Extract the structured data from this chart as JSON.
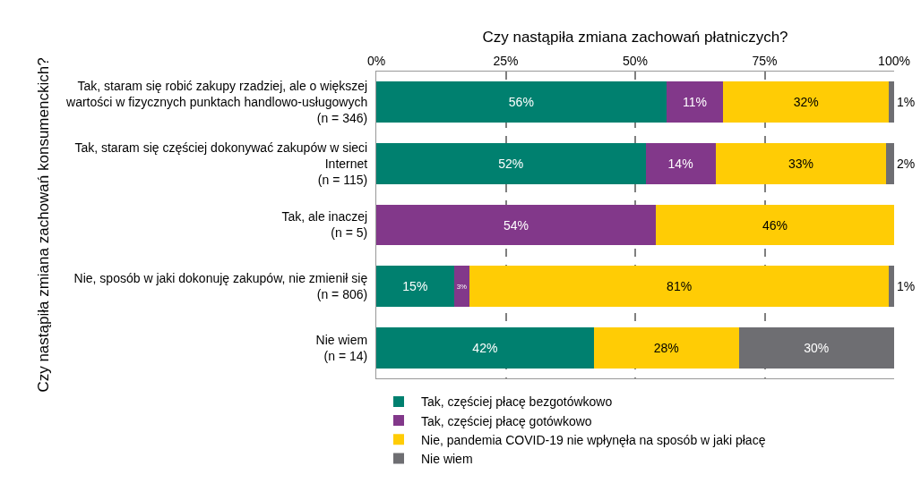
{
  "chart_data": {
    "type": "bar",
    "orientation": "horizontal",
    "stacked": true,
    "xlabel": "Czy nastąpiła zmiana zachowań płatniczych?",
    "ylabel": "Czy nastąpiła zmiana zachowań konsumenckich?",
    "categories": [
      "Tak, staram się robić zakupy rzadziej, ale o większej\nwartości w fizycznych punktach handlowo-usługowych\n(n = 346)",
      "Tak, staram się częściej dokonywać zakupów w sieci\nInternet\n(n = 115)",
      "Tak, ale inaczej\n(n = 5)",
      "Nie, sposób w jaki dokonuję zakupów, nie zmienił się\n(n = 806)",
      "Nie wiem\n(n = 14)"
    ],
    "series": [
      {
        "name": "Tak, częściej płacę bezgotówkowo",
        "color": "#00806f",
        "values": [
          56,
          52,
          0,
          15,
          42
        ],
        "value_labels": [
          "56%",
          "52%",
          null,
          "15%",
          "42%"
        ]
      },
      {
        "name": "Tak, częściej płacę gotówkowo",
        "color": "#82388a",
        "values": [
          11,
          13.5,
          54,
          3,
          0
        ],
        "value_labels": [
          "11%",
          "14%",
          "54%",
          "3%",
          null
        ]
      },
      {
        "name": "Nie, pandemia COVID-19 nie wpłynęła na sposób w jaki płacę",
        "color": "#ffcc05",
        "values": [
          32,
          33,
          46,
          81,
          28
        ],
        "value_labels": [
          "32%",
          "33%",
          "46%",
          "81%",
          "28%"
        ]
      },
      {
        "name": "Nie wiem",
        "color": "#6e6e72",
        "values": [
          1,
          1.5,
          0,
          1,
          30
        ],
        "value_labels": [
          "1%",
          "2%",
          null,
          "1%",
          "30%"
        ]
      }
    ],
    "xlim": [
      0,
      100
    ],
    "xticks": [
      {
        "value": 0,
        "label": "0%"
      },
      {
        "value": 25,
        "label": "25%"
      },
      {
        "value": 50,
        "label": "50%"
      },
      {
        "value": 75,
        "label": "75%"
      },
      {
        "value": 100,
        "label": "100%"
      }
    ],
    "grid": "x",
    "legend": "bottom"
  }
}
